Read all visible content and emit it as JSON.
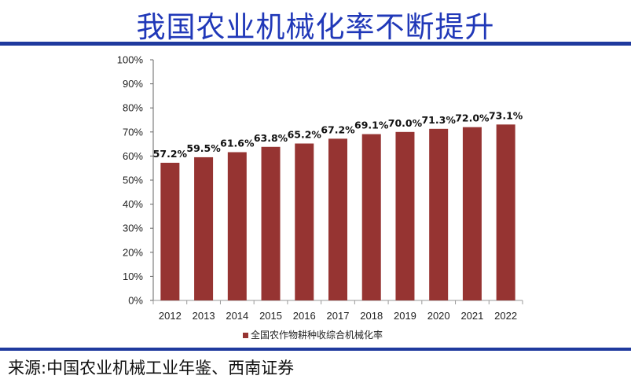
{
  "header": {
    "title": "我国农业机械化率不断提升"
  },
  "footer": {
    "source": "来源:中国农业机械工业年鉴、西南证券"
  },
  "colors": {
    "bar": "#963432",
    "title": "#2038b8",
    "rule": "#1f3a9e"
  },
  "chart_data": {
    "type": "bar",
    "title": "",
    "categories": [
      "2012",
      "2013",
      "2014",
      "2015",
      "2016",
      "2017",
      "2018",
      "2019",
      "2020",
      "2021",
      "2022"
    ],
    "series": [
      {
        "name": "全国农作物耕种收综合机械化率",
        "values": [
          57.2,
          59.5,
          61.6,
          63.8,
          65.2,
          67.2,
          69.1,
          70.0,
          71.3,
          72.0,
          73.1
        ]
      }
    ],
    "data_labels": [
      "57.2%",
      "59.5%",
      "61.6%",
      "63.8%",
      "65.2%",
      "67.2%",
      "69.1%",
      "70.0%",
      "71.3%",
      "72.0%",
      "73.1%"
    ],
    "yticks": [
      "0%",
      "10%",
      "20%",
      "30%",
      "40%",
      "50%",
      "60%",
      "70%",
      "80%",
      "90%",
      "100%"
    ],
    "ylim": [
      0,
      100
    ],
    "xlabel": "",
    "ylabel": "",
    "grid": false,
    "legend": "bottom"
  }
}
